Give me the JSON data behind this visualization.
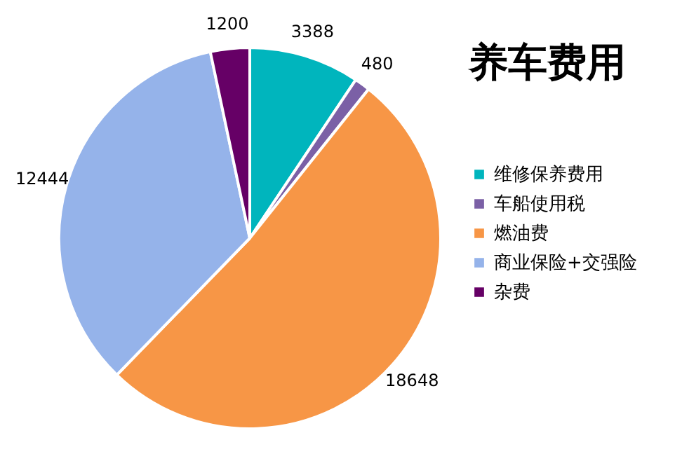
{
  "chart_data": {
    "type": "pie",
    "title": "养车费用",
    "categories": [
      "维修保养费用",
      "车船使用税",
      "燃油费",
      "商业保险+交强险",
      "杂费"
    ],
    "values": [
      3388,
      480,
      18648,
      12444,
      1200
    ],
    "colors": [
      "#00b5bd",
      "#7b60a6",
      "#f79646",
      "#95b3ea",
      "#660066"
    ],
    "data_labels": true,
    "legend": "right"
  }
}
